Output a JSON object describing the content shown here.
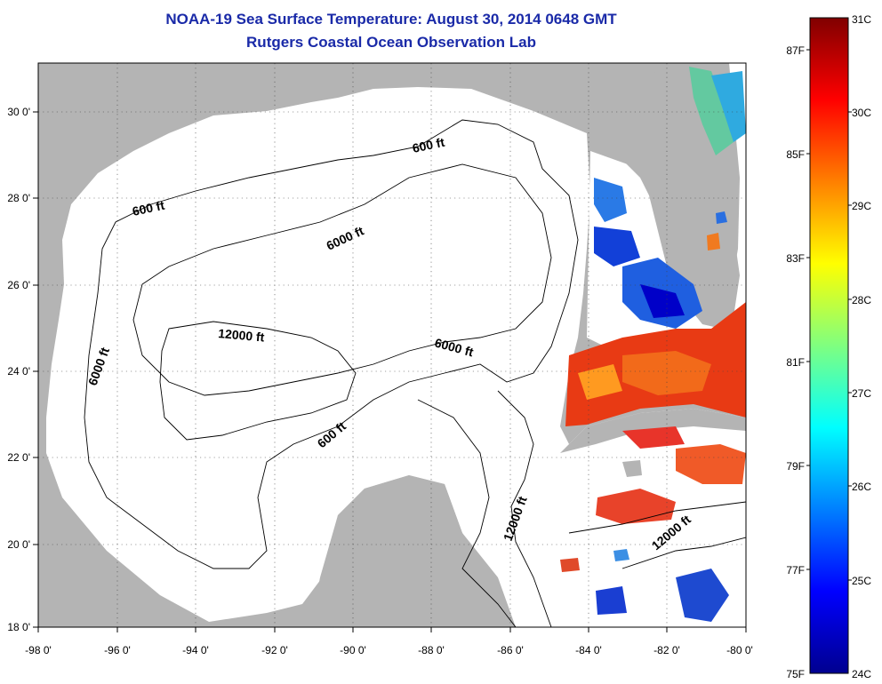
{
  "title": {
    "line1": "NOAA-19 Sea Surface Temperature:  August 30, 2014 0648 GMT",
    "line2": "Rutgers Coastal Ocean Observation Lab"
  },
  "map": {
    "longitude_range": [
      -98,
      -80
    ],
    "latitude_range": [
      18,
      31
    ],
    "lon_tick_labels": [
      "-98 0'",
      "-96 0'",
      "-94 0'",
      "-92 0'",
      "-90 0'",
      "-88 0'",
      "-86 0'",
      "-84 0'",
      "-82 0'",
      "-80 0'"
    ],
    "lat_tick_labels": [
      "18 0'",
      "20 0'",
      "22 0'",
      "24 0'",
      "26 0'",
      "28 0'",
      "30 0'"
    ],
    "contour_labels": [
      "600 ft",
      "600 ft",
      "6000 ft",
      "6000 ft",
      "6000 ft",
      "12000 ft",
      "600 ft",
      "12000 ft",
      "12000 ft"
    ],
    "land_color": "#b4b4b4",
    "ocean_color": "#ffffff"
  },
  "colorbar": {
    "celsius_labels": [
      "31C",
      "30C",
      "29C",
      "28C",
      "27C",
      "26C",
      "25C",
      "24C"
    ],
    "fahrenheit_labels": [
      "87F",
      "85F",
      "83F",
      "81F",
      "79F",
      "77F",
      "75F"
    ],
    "range_celsius": [
      24,
      31
    ],
    "colormap": "jet"
  }
}
